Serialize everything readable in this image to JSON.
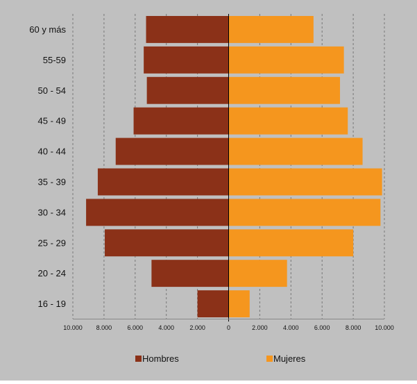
{
  "chart_data": {
    "type": "bar",
    "orientation": "horizontal",
    "title": "",
    "categories": [
      "60 y más",
      "55-59",
      "50 - 54",
      "45 - 49",
      "40 - 44",
      "35 - 39",
      "30 - 34",
      "25 - 29",
      "20 - 24",
      "16 - 19"
    ],
    "series": [
      {
        "name": "Hombres",
        "values": [
          5300,
          5450,
          5250,
          6100,
          7250,
          8400,
          9150,
          7950,
          4950,
          2000
        ],
        "color": "#8b3118"
      },
      {
        "name": "Mujeres",
        "values": [
          5450,
          7400,
          7150,
          7650,
          8600,
          9850,
          9750,
          8000,
          3750,
          1350
        ],
        "color": "#f5961e"
      }
    ],
    "x_ticks": [
      "10.000",
      "8.000",
      "6.000",
      "4.000",
      "2.000",
      "0",
      "2.000",
      "4.000",
      "6.000",
      "8.000",
      "10.000"
    ],
    "xlim": [
      -10000,
      10000
    ],
    "grid": "vertical-dashed",
    "legend_position": "bottom",
    "background_color": "#c0c0c0"
  }
}
